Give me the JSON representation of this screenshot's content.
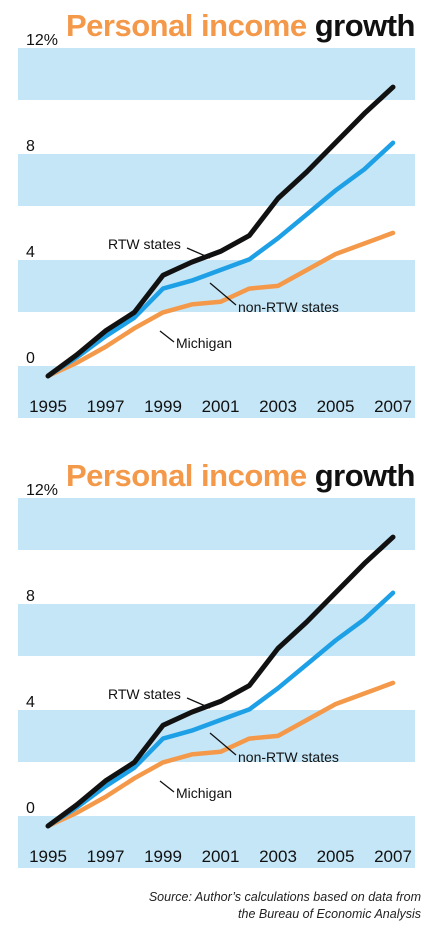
{
  "title": {
    "highlight": "Personal income",
    "rest": "growth"
  },
  "colors": {
    "band": "#c5e6f7",
    "rtw": "#111111",
    "non_rtw": "#1ea0e6",
    "michigan": "#f4994a",
    "title_highlight": "#f4994a"
  },
  "source_line1": "Source: Author’s calculations based on data from",
  "source_line2": "the Bureau of Economic Analysis",
  "chart_data": [
    {
      "type": "line",
      "title": "Personal income growth",
      "x": [
        1995,
        1996,
        1997,
        1998,
        1999,
        2000,
        2001,
        2002,
        2003,
        2004,
        2005,
        2006,
        2007
      ],
      "x_tick_labels": [
        "1995",
        "1997",
        "1999",
        "2001",
        "2003",
        "2005",
        "2007"
      ],
      "y_tick_labels": [
        "0",
        "4",
        "8",
        "12%"
      ],
      "y_ticks": [
        0,
        4,
        8,
        12
      ],
      "ylim": [
        0,
        12
      ],
      "xlabel": "",
      "ylabel": "",
      "grid": "alternating horizontal bands",
      "legend": "direct labels on lines",
      "series": [
        {
          "name": "RTW states",
          "color": "#111111",
          "values": [
            0,
            0.8,
            1.7,
            2.4,
            3.8,
            4.3,
            4.7,
            5.3,
            6.7,
            7.7,
            8.8,
            9.9,
            10.9
          ]
        },
        {
          "name": "non-RTW states",
          "color": "#1ea0e6",
          "values": [
            0,
            0.7,
            1.5,
            2.2,
            3.3,
            3.6,
            4.0,
            4.4,
            5.2,
            6.1,
            7.0,
            7.8,
            8.8
          ]
        },
        {
          "name": "Michigan",
          "color": "#f4994a",
          "values": [
            0,
            0.5,
            1.1,
            1.8,
            2.4,
            2.7,
            2.8,
            3.3,
            3.4,
            4.0,
            4.6,
            5.0,
            5.4
          ]
        }
      ],
      "annotations": [
        "RTW states",
        "non-RTW states",
        "Michigan"
      ]
    },
    {
      "type": "line",
      "title": "Personal income growth",
      "x": [
        1995,
        1996,
        1997,
        1998,
        1999,
        2000,
        2001,
        2002,
        2003,
        2004,
        2005,
        2006,
        2007
      ],
      "x_tick_labels": [
        "1995",
        "1997",
        "1999",
        "2001",
        "2003",
        "2005",
        "2007"
      ],
      "y_tick_labels": [
        "0",
        "4",
        "8",
        "12%"
      ],
      "y_ticks": [
        0,
        4,
        8,
        12
      ],
      "ylim": [
        0,
        12
      ],
      "xlabel": "",
      "ylabel": "",
      "grid": "alternating horizontal bands",
      "legend": "direct labels on lines",
      "series": [
        {
          "name": "RTW states",
          "color": "#111111",
          "values": [
            0,
            0.8,
            1.7,
            2.4,
            3.8,
            4.3,
            4.7,
            5.3,
            6.7,
            7.7,
            8.8,
            9.9,
            10.9
          ]
        },
        {
          "name": "non-RTW states",
          "color": "#1ea0e6",
          "values": [
            0,
            0.7,
            1.5,
            2.2,
            3.3,
            3.6,
            4.0,
            4.4,
            5.2,
            6.1,
            7.0,
            7.8,
            8.8
          ]
        },
        {
          "name": "Michigan",
          "color": "#f4994a",
          "values": [
            0,
            0.5,
            1.1,
            1.8,
            2.4,
            2.7,
            2.8,
            3.3,
            3.4,
            4.0,
            4.6,
            5.0,
            5.4
          ]
        }
      ],
      "annotations": [
        "RTW states",
        "non-RTW states",
        "Michigan"
      ]
    }
  ]
}
